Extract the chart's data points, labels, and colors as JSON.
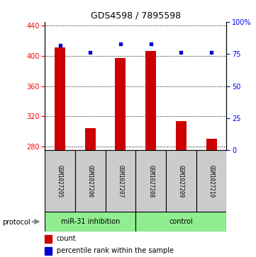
{
  "title": "GDS4598 / 7895598",
  "samples": [
    "GSM1027205",
    "GSM1027206",
    "GSM1027207",
    "GSM1027208",
    "GSM1027209",
    "GSM1027210"
  ],
  "counts": [
    411,
    304,
    397,
    406,
    314,
    290
  ],
  "percentile_ranks": [
    82,
    76,
    83,
    83,
    76,
    76
  ],
  "ylim_left": [
    275,
    445
  ],
  "ylim_right": [
    0,
    100
  ],
  "yticks_left": [
    280,
    320,
    360,
    400,
    440
  ],
  "yticks_right": [
    0,
    25,
    50,
    75,
    100
  ],
  "bar_color": "#cc0000",
  "dot_color": "#0000cc",
  "bar_bottom": 275,
  "group1_label": "miR-31 inhibition",
  "group2_label": "control",
  "group_color": "#90EE90",
  "protocol_label": "protocol",
  "legend_count_label": "count",
  "legend_percentile_label": "percentile rank within the sample",
  "sample_box_color": "#cccccc",
  "gridline_color": "#555555"
}
